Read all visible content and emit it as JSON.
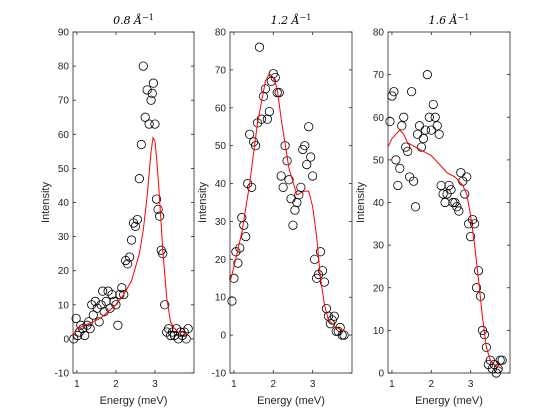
{
  "chart_data": [
    {
      "type": "scatter",
      "title": "0.8 Å",
      "title_exponent": "−1",
      "xlabel": "Energy (meV)",
      "ylabel": "Intensity",
      "xlim": [
        0.9,
        4.0
      ],
      "ylim": [
        -10,
        90
      ],
      "xticks": [
        1,
        2,
        3
      ],
      "yticks": [
        -10,
        0,
        10,
        20,
        30,
        40,
        50,
        60,
        70,
        80,
        90
      ],
      "series": [
        {
          "kind": "points",
          "marker": "open-circle",
          "color": "#000000",
          "x": [
            0.92,
            0.98,
            1.02,
            1.06,
            1.1,
            1.15,
            1.2,
            1.26,
            1.3,
            1.34,
            1.38,
            1.42,
            1.47,
            1.52,
            1.57,
            1.62,
            1.66,
            1.7,
            1.75,
            1.8,
            1.85,
            1.9,
            1.95,
            2.0,
            2.05,
            2.1,
            2.15,
            2.2,
            2.25,
            2.3,
            2.35,
            2.4,
            2.45,
            2.5,
            2.55,
            2.6,
            2.65,
            2.7,
            2.75,
            2.8,
            2.85,
            2.9,
            2.93,
            2.96,
            3.0,
            3.04,
            3.08,
            3.12,
            3.16,
            3.2,
            3.25,
            3.3,
            3.35,
            3.4,
            3.45,
            3.5,
            3.55,
            3.6,
            3.65,
            3.7,
            3.75,
            3.8,
            3.85
          ],
          "y": [
            0,
            6,
            1,
            2,
            4,
            3,
            1,
            4,
            5,
            3,
            10,
            7,
            11,
            9,
            5,
            10,
            14,
            8,
            11,
            14,
            9,
            13,
            11,
            10,
            4,
            13,
            15,
            13,
            23,
            22,
            24,
            29,
            34,
            33,
            35,
            47,
            57,
            80,
            65,
            73,
            63,
            70,
            72,
            75,
            63,
            41,
            38,
            36,
            26,
            25,
            10,
            2,
            3,
            1,
            2,
            1,
            3,
            0,
            2,
            1,
            2,
            0,
            3
          ]
        },
        {
          "kind": "fit",
          "color": "#ff0000",
          "x": [
            0.9,
            1.0,
            1.2,
            1.4,
            1.6,
            1.8,
            2.0,
            2.2,
            2.4,
            2.6,
            2.7,
            2.8,
            2.9,
            2.95,
            3.0,
            3.05,
            3.1,
            3.2,
            3.3,
            3.4,
            3.5,
            3.6,
            3.7,
            3.8,
            3.85
          ],
          "y": [
            1,
            3,
            4,
            5,
            6,
            8,
            10,
            13,
            17,
            25,
            32,
            42,
            55,
            59,
            58,
            52,
            44,
            26,
            12,
            5,
            3,
            2,
            2,
            1.5,
            1
          ]
        }
      ]
    },
    {
      "type": "scatter",
      "title": "1.2 Å",
      "title_exponent": "−1",
      "xlabel": "Energy (meV)",
      "ylabel": "Intensity",
      "xlim": [
        0.9,
        4.0
      ],
      "ylim": [
        -10,
        80
      ],
      "xticks": [
        1,
        2,
        3
      ],
      "yticks": [
        -10,
        0,
        10,
        20,
        30,
        40,
        50,
        60,
        70,
        80
      ],
      "series": [
        {
          "kind": "points",
          "marker": "open-circle",
          "color": "#000000",
          "x": [
            0.95,
            1.0,
            1.05,
            1.1,
            1.15,
            1.2,
            1.25,
            1.3,
            1.35,
            1.4,
            1.45,
            1.5,
            1.55,
            1.6,
            1.65,
            1.7,
            1.75,
            1.8,
            1.85,
            1.9,
            1.95,
            2.0,
            2.05,
            2.1,
            2.15,
            2.2,
            2.25,
            2.3,
            2.35,
            2.4,
            2.45,
            2.5,
            2.55,
            2.6,
            2.65,
            2.7,
            2.75,
            2.8,
            2.85,
            2.9,
            2.95,
            3.0,
            3.05,
            3.1,
            3.15,
            3.2,
            3.25,
            3.3,
            3.35,
            3.4,
            3.45,
            3.5,
            3.55,
            3.6,
            3.65,
            3.7,
            3.75,
            3.8
          ],
          "y": [
            9,
            15,
            22,
            19,
            23,
            31,
            29,
            26,
            40,
            53,
            39,
            51,
            50,
            56,
            76,
            57,
            63,
            65,
            57,
            59,
            67,
            69,
            68,
            64,
            64,
            42,
            39,
            50,
            46,
            41,
            36,
            29,
            33,
            35,
            37,
            39,
            49,
            50,
            45,
            55,
            47,
            42,
            20,
            15,
            16,
            22,
            17,
            14,
            7,
            5,
            3,
            4,
            5,
            1,
            1,
            2,
            0,
            0
          ]
        },
        {
          "kind": "fit",
          "color": "#ff0000",
          "x": [
            0.9,
            1.0,
            1.2,
            1.4,
            1.6,
            1.8,
            1.9,
            2.0,
            2.1,
            2.2,
            2.4,
            2.6,
            2.8,
            2.9,
            3.0,
            3.1,
            3.2,
            3.3,
            3.4,
            3.5,
            3.6,
            3.7,
            3.8
          ],
          "y": [
            14,
            18,
            27,
            40,
            56,
            67,
            69,
            68,
            65,
            57,
            44,
            37,
            38,
            38,
            34,
            26,
            15,
            8,
            4,
            3,
            2,
            1.5,
            1
          ]
        }
      ]
    },
    {
      "type": "scatter",
      "title": "1.6 Å",
      "title_exponent": "−1",
      "xlabel": "Energy (meV)",
      "ylabel": "Intensity",
      "xlim": [
        0.9,
        4.0
      ],
      "ylim": [
        0,
        80
      ],
      "xticks": [
        1,
        2,
        3
      ],
      "yticks": [
        0,
        10,
        20,
        30,
        40,
        50,
        60,
        70,
        80
      ],
      "series": [
        {
          "kind": "points",
          "marker": "open-circle",
          "color": "#000000",
          "x": [
            0.95,
            1.0,
            1.05,
            1.1,
            1.15,
            1.2,
            1.25,
            1.3,
            1.35,
            1.4,
            1.45,
            1.5,
            1.55,
            1.6,
            1.65,
            1.7,
            1.75,
            1.8,
            1.85,
            1.9,
            1.95,
            2.0,
            2.05,
            2.1,
            2.15,
            2.2,
            2.25,
            2.3,
            2.35,
            2.4,
            2.45,
            2.5,
            2.55,
            2.6,
            2.65,
            2.7,
            2.75,
            2.8,
            2.85,
            2.9,
            2.95,
            3.0,
            3.05,
            3.1,
            3.15,
            3.2,
            3.25,
            3.3,
            3.35,
            3.4,
            3.45,
            3.5,
            3.55,
            3.6,
            3.65,
            3.7,
            3.75,
            3.8
          ],
          "y": [
            59,
            65,
            66,
            50,
            44,
            48,
            58,
            60,
            53,
            52,
            46,
            66,
            45,
            39,
            56,
            58,
            53,
            55,
            57,
            70,
            60,
            57,
            63,
            60,
            58,
            56,
            44,
            42,
            40,
            42,
            44,
            43,
            40,
            40,
            39,
            38,
            47,
            45,
            42,
            46,
            35,
            32,
            36,
            35,
            20,
            24,
            18,
            10,
            9,
            6,
            2,
            3,
            1,
            2,
            0,
            1,
            3,
            3
          ]
        },
        {
          "kind": "fit",
          "color": "#ff0000",
          "x": [
            0.9,
            1.0,
            1.1,
            1.2,
            1.3,
            1.4,
            1.6,
            1.8,
            2.0,
            2.2,
            2.4,
            2.6,
            2.8,
            2.9,
            3.0,
            3.1,
            3.2,
            3.3,
            3.4,
            3.5,
            3.6,
            3.7,
            3.8
          ],
          "y": [
            53,
            55,
            56,
            57,
            56,
            54,
            53,
            52,
            51,
            49,
            47,
            46,
            44,
            42,
            37,
            30,
            22,
            13,
            6,
            3,
            2,
            1.5,
            1
          ]
        }
      ]
    }
  ]
}
